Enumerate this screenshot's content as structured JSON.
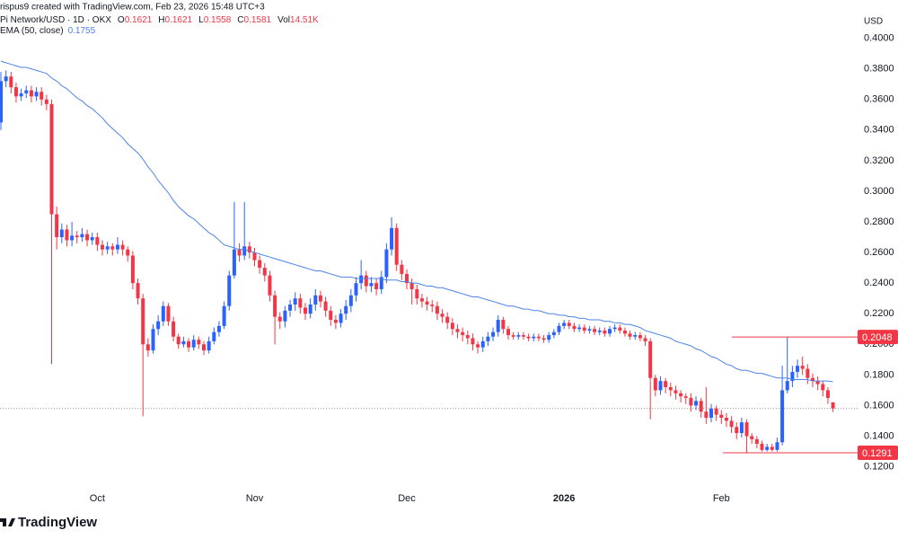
{
  "chart_data": {
    "type": "candlestick",
    "credit": "rispus9 created with TradingView.com, Feb 23, 2026 15:48 UTC+3",
    "symbol": "Pi Network/USD · 1D · OKX",
    "ohlc_legend": [
      {
        "key": "O",
        "text": "0.1621"
      },
      {
        "key": "H",
        "text": "0.1621"
      },
      {
        "key": "L",
        "text": "0.1558"
      },
      {
        "key": "C",
        "text": "0.1581"
      },
      {
        "key": "Vol",
        "text": "14.51K"
      }
    ],
    "currency": "USD",
    "brand": "TradingView",
    "up_color": "#2962ff",
    "down_color": "#f23645",
    "grid": false,
    "categories": [
      null,
      null,
      null,
      null,
      null,
      null,
      null,
      null,
      null,
      null,
      null,
      null,
      null,
      null,
      null,
      null,
      null,
      null,
      null,
      "Oct",
      null,
      null,
      null,
      null,
      null,
      null,
      null,
      null,
      null,
      null,
      null,
      null,
      null,
      null,
      null,
      null,
      null,
      null,
      null,
      null,
      null,
      null,
      null,
      null,
      null,
      null,
      null,
      null,
      null,
      null,
      "Nov",
      null,
      null,
      null,
      null,
      null,
      null,
      null,
      null,
      null,
      null,
      null,
      null,
      null,
      null,
      null,
      null,
      null,
      null,
      null,
      null,
      null,
      null,
      null,
      null,
      null,
      null,
      null,
      null,
      null,
      "Dec",
      null,
      null,
      null,
      null,
      null,
      null,
      null,
      null,
      null,
      null,
      null,
      null,
      null,
      null,
      null,
      null,
      null,
      null,
      null,
      null,
      null,
      null,
      null,
      null,
      null,
      null,
      null,
      null,
      null,
      null,
      "2026",
      null,
      null,
      null,
      null,
      null,
      null,
      null,
      null,
      null,
      null,
      null,
      null,
      null,
      null,
      null,
      null,
      null,
      null,
      null,
      null,
      null,
      null,
      null,
      null,
      null,
      null,
      null,
      null,
      null,
      null,
      "Feb",
      null,
      null,
      null,
      null,
      null,
      null,
      null,
      null,
      null,
      null,
      null,
      null,
      null,
      null,
      null,
      null,
      null,
      null,
      null,
      null,
      null,
      null
    ],
    "open": [
      0.345,
      0.372,
      0.375,
      0.368,
      0.362,
      0.364,
      0.366,
      0.362,
      0.365,
      0.36,
      0.357,
      0.285,
      0.27,
      0.275,
      0.268,
      0.271,
      0.27,
      0.272,
      0.268,
      0.27,
      0.265,
      0.262,
      0.264,
      0.262,
      0.265,
      0.262,
      0.258,
      0.24,
      0.23,
      0.2,
      0.196,
      0.21,
      0.215,
      0.225,
      0.215,
      0.205,
      0.2,
      0.202,
      0.198,
      0.203,
      0.2,
      0.196,
      0.202,
      0.208,
      0.212,
      0.225,
      0.245,
      0.262,
      0.258,
      0.264,
      0.26,
      0.255,
      0.25,
      0.245,
      0.232,
      0.218,
      0.215,
      0.222,
      0.226,
      0.23,
      0.224,
      0.22,
      0.226,
      0.232,
      0.228,
      0.222,
      0.216,
      0.214,
      0.22,
      0.225,
      0.232,
      0.24,
      0.245,
      0.238,
      0.24,
      0.236,
      0.244,
      0.262,
      0.276,
      0.252,
      0.246,
      0.24,
      0.236,
      0.23,
      0.228,
      0.226,
      0.225,
      0.22,
      0.218,
      0.214,
      0.21,
      0.208,
      0.206,
      0.204,
      0.2,
      0.198,
      0.202,
      0.205,
      0.208,
      0.216,
      0.21,
      0.206,
      0.205,
      0.206,
      0.205,
      0.204,
      0.205,
      0.204,
      0.203,
      0.206,
      0.208,
      0.212,
      0.214,
      0.212,
      0.21,
      0.211,
      0.209,
      0.21,
      0.208,
      0.209,
      0.207,
      0.21,
      0.211,
      0.209,
      0.207,
      0.205,
      0.206,
      0.204,
      0.202,
      0.178,
      0.17,
      0.176,
      0.172,
      0.17,
      0.168,
      0.166,
      0.165,
      0.16,
      0.163,
      0.156,
      0.152,
      0.158,
      0.154,
      0.152,
      0.15,
      0.146,
      0.142,
      0.149,
      0.14,
      0.138,
      0.135,
      0.131,
      0.133,
      0.131,
      0.136,
      0.17,
      0.176,
      0.182,
      0.186,
      0.184,
      0.178,
      0.176,
      0.174,
      0.17,
      0.1621
    ],
    "high": [
      0.378,
      0.379,
      0.378,
      0.371,
      0.367,
      0.369,
      0.369,
      0.368,
      0.368,
      0.363,
      0.36,
      0.29,
      0.279,
      0.278,
      0.28,
      0.274,
      0.276,
      0.275,
      0.273,
      0.273,
      0.268,
      0.267,
      0.266,
      0.27,
      0.268,
      0.264,
      0.261,
      0.243,
      0.233,
      0.204,
      0.213,
      0.219,
      0.228,
      0.227,
      0.218,
      0.207,
      0.205,
      0.204,
      0.206,
      0.205,
      0.202,
      0.205,
      0.211,
      0.215,
      0.228,
      0.248,
      0.293,
      0.266,
      0.293,
      0.267,
      0.263,
      0.258,
      0.253,
      0.248,
      0.235,
      0.221,
      0.225,
      0.229,
      0.234,
      0.233,
      0.227,
      0.23,
      0.236,
      0.235,
      0.231,
      0.225,
      0.219,
      0.223,
      0.229,
      0.236,
      0.244,
      0.255,
      0.248,
      0.244,
      0.243,
      0.248,
      0.266,
      0.283,
      0.279,
      0.255,
      0.249,
      0.243,
      0.239,
      0.233,
      0.231,
      0.229,
      0.228,
      0.223,
      0.221,
      0.217,
      0.213,
      0.211,
      0.209,
      0.207,
      0.202,
      0.205,
      0.208,
      0.211,
      0.219,
      0.218,
      0.212,
      0.208,
      0.208,
      0.208,
      0.207,
      0.207,
      0.207,
      0.206,
      0.208,
      0.21,
      0.214,
      0.216,
      0.216,
      0.214,
      0.213,
      0.213,
      0.212,
      0.212,
      0.211,
      0.211,
      0.212,
      0.213,
      0.213,
      0.211,
      0.209,
      0.208,
      0.208,
      0.206,
      0.204,
      0.18,
      0.179,
      0.178,
      0.175,
      0.173,
      0.17,
      0.168,
      0.168,
      0.166,
      0.165,
      0.172,
      0.161,
      0.16,
      0.157,
      0.155,
      0.153,
      0.149,
      0.152,
      0.151,
      0.142,
      0.14,
      0.137,
      0.135,
      0.135,
      0.139,
      0.186,
      0.2048,
      0.186,
      0.19,
      0.192,
      0.187,
      0.181,
      0.179,
      0.176,
      0.172,
      0.1621
    ],
    "low": [
      0.34,
      0.368,
      0.364,
      0.358,
      0.359,
      0.361,
      0.358,
      0.359,
      0.356,
      0.353,
      0.187,
      0.262,
      0.266,
      0.264,
      0.264,
      0.266,
      0.267,
      0.264,
      0.265,
      0.261,
      0.258,
      0.259,
      0.258,
      0.259,
      0.258,
      0.254,
      0.236,
      0.226,
      0.153,
      0.192,
      0.194,
      0.206,
      0.212,
      0.212,
      0.202,
      0.197,
      0.198,
      0.195,
      0.196,
      0.197,
      0.193,
      0.194,
      0.2,
      0.205,
      0.21,
      0.222,
      0.243,
      0.254,
      0.255,
      0.256,
      0.251,
      0.246,
      0.241,
      0.228,
      0.2,
      0.21,
      0.211,
      0.218,
      0.222,
      0.22,
      0.216,
      0.217,
      0.222,
      0.224,
      0.218,
      0.212,
      0.21,
      0.211,
      0.216,
      0.221,
      0.228,
      0.236,
      0.234,
      0.234,
      0.232,
      0.233,
      0.24,
      0.258,
      0.248,
      0.242,
      0.236,
      0.226,
      0.226,
      0.224,
      0.222,
      0.221,
      0.216,
      0.214,
      0.21,
      0.206,
      0.204,
      0.202,
      0.2,
      0.196,
      0.194,
      0.195,
      0.199,
      0.202,
      0.205,
      0.207,
      0.203,
      0.203,
      0.203,
      0.203,
      0.202,
      0.202,
      0.202,
      0.201,
      0.201,
      0.204,
      0.206,
      0.21,
      0.21,
      0.208,
      0.208,
      0.207,
      0.207,
      0.206,
      0.206,
      0.205,
      0.205,
      0.208,
      0.207,
      0.205,
      0.203,
      0.203,
      0.202,
      0.199,
      0.151,
      0.166,
      0.167,
      0.168,
      0.166,
      0.164,
      0.162,
      0.161,
      0.156,
      0.157,
      0.152,
      0.148,
      0.149,
      0.15,
      0.148,
      0.146,
      0.142,
      0.138,
      0.139,
      0.1291,
      0.135,
      0.132,
      0.13,
      0.13,
      0.13,
      0.13,
      0.134,
      0.168,
      0.172,
      0.178,
      0.18,
      0.174,
      0.172,
      0.17,
      0.166,
      0.161,
      0.1558
    ],
    "close": [
      0.372,
      0.375,
      0.368,
      0.362,
      0.364,
      0.366,
      0.362,
      0.365,
      0.36,
      0.357,
      0.285,
      0.27,
      0.275,
      0.268,
      0.271,
      0.27,
      0.272,
      0.268,
      0.27,
      0.265,
      0.262,
      0.264,
      0.262,
      0.265,
      0.262,
      0.258,
      0.24,
      0.23,
      0.2,
      0.196,
      0.21,
      0.215,
      0.225,
      0.215,
      0.205,
      0.2,
      0.202,
      0.198,
      0.203,
      0.2,
      0.196,
      0.202,
      0.208,
      0.212,
      0.225,
      0.245,
      0.262,
      0.258,
      0.264,
      0.26,
      0.255,
      0.25,
      0.245,
      0.232,
      0.218,
      0.215,
      0.222,
      0.226,
      0.23,
      0.224,
      0.22,
      0.226,
      0.232,
      0.228,
      0.222,
      0.216,
      0.214,
      0.22,
      0.225,
      0.232,
      0.24,
      0.245,
      0.238,
      0.24,
      0.236,
      0.244,
      0.262,
      0.276,
      0.252,
      0.246,
      0.24,
      0.236,
      0.23,
      0.228,
      0.226,
      0.225,
      0.22,
      0.218,
      0.214,
      0.21,
      0.208,
      0.206,
      0.204,
      0.2,
      0.198,
      0.202,
      0.205,
      0.208,
      0.216,
      0.21,
      0.206,
      0.205,
      0.206,
      0.205,
      0.204,
      0.205,
      0.204,
      0.203,
      0.206,
      0.208,
      0.212,
      0.214,
      0.212,
      0.21,
      0.211,
      0.209,
      0.21,
      0.208,
      0.209,
      0.207,
      0.21,
      0.211,
      0.209,
      0.207,
      0.205,
      0.206,
      0.204,
      0.202,
      0.178,
      0.17,
      0.176,
      0.172,
      0.17,
      0.168,
      0.166,
      0.165,
      0.16,
      0.163,
      0.156,
      0.152,
      0.158,
      0.154,
      0.152,
      0.15,
      0.146,
      0.142,
      0.149,
      0.14,
      0.138,
      0.135,
      0.131,
      0.133,
      0.131,
      0.136,
      0.17,
      0.176,
      0.182,
      0.186,
      0.184,
      0.178,
      0.176,
      0.174,
      0.17,
      0.165,
      0.1581
    ],
    "overlays": [
      {
        "name": "EMA (50, close)",
        "value_label": "0.1755",
        "color": "#4c84e8",
        "values": [
          0.385,
          0.384,
          0.383,
          0.382,
          0.381,
          0.381,
          0.38,
          0.379,
          0.378,
          0.377,
          0.374,
          0.372,
          0.369,
          0.367,
          0.364,
          0.361,
          0.359,
          0.356,
          0.354,
          0.351,
          0.348,
          0.344,
          0.341,
          0.338,
          0.335,
          0.331,
          0.328,
          0.325,
          0.321,
          0.316,
          0.312,
          0.307,
          0.303,
          0.299,
          0.294,
          0.29,
          0.287,
          0.284,
          0.282,
          0.279,
          0.276,
          0.273,
          0.271,
          0.268,
          0.265,
          0.264,
          0.263,
          0.262,
          0.262,
          0.261,
          0.26,
          0.259,
          0.258,
          0.257,
          0.256,
          0.255,
          0.254,
          0.253,
          0.252,
          0.251,
          0.25,
          0.249,
          0.248,
          0.248,
          0.247,
          0.246,
          0.245,
          0.244,
          0.244,
          0.244,
          0.243,
          0.243,
          0.243,
          0.243,
          0.243,
          0.243,
          0.242,
          0.242,
          0.242,
          0.241,
          0.241,
          0.24,
          0.24,
          0.239,
          0.238,
          0.238,
          0.237,
          0.237,
          0.236,
          0.235,
          0.234,
          0.233,
          0.232,
          0.231,
          0.231,
          0.23,
          0.229,
          0.228,
          0.227,
          0.226,
          0.225,
          0.225,
          0.224,
          0.223,
          0.223,
          0.222,
          0.222,
          0.221,
          0.22,
          0.22,
          0.219,
          0.219,
          0.218,
          0.218,
          0.217,
          0.217,
          0.216,
          0.216,
          0.216,
          0.215,
          0.215,
          0.214,
          0.214,
          0.213,
          0.213,
          0.212,
          0.211,
          0.209,
          0.208,
          0.207,
          0.206,
          0.205,
          0.204,
          0.202,
          0.201,
          0.2,
          0.199,
          0.197,
          0.196,
          0.194,
          0.192,
          0.191,
          0.189,
          0.187,
          0.186,
          0.184,
          0.183,
          0.183,
          0.182,
          0.181,
          0.181,
          0.18,
          0.179,
          0.178,
          0.178,
          0.178,
          0.177,
          0.177,
          0.177,
          0.177,
          0.176,
          0.176,
          0.176,
          0.176,
          0.1755
        ]
      }
    ],
    "levels": [
      {
        "value": 0.2048,
        "label": "0.2048",
        "color": "#f23645"
      },
      {
        "value": 0.1291,
        "label": "0.1291",
        "color": "#f23645"
      }
    ],
    "ylim": [
      0.108,
      0.425
    ],
    "yticks": [
      {
        "value": 0.12,
        "label": "0.1200"
      },
      {
        "value": 0.14,
        "label": "0.1400"
      },
      {
        "value": 0.16,
        "label": "0.1600"
      },
      {
        "value": 0.18,
        "label": "0.1800"
      },
      {
        "value": 0.2,
        "label": "0.2000"
      },
      {
        "value": 0.22,
        "label": "0.2200"
      },
      {
        "value": 0.24,
        "label": "0.2400"
      },
      {
        "value": 0.26,
        "label": "0.2600"
      },
      {
        "value": 0.28,
        "label": "0.2800"
      },
      {
        "value": 0.3,
        "label": "0.3000"
      },
      {
        "value": 0.32,
        "label": "0.3200"
      },
      {
        "value": 0.34,
        "label": "0.3400"
      },
      {
        "value": 0.36,
        "label": "0.3600"
      },
      {
        "value": 0.38,
        "label": "0.3800"
      },
      {
        "value": 0.4,
        "label": "0.4000"
      }
    ]
  }
}
